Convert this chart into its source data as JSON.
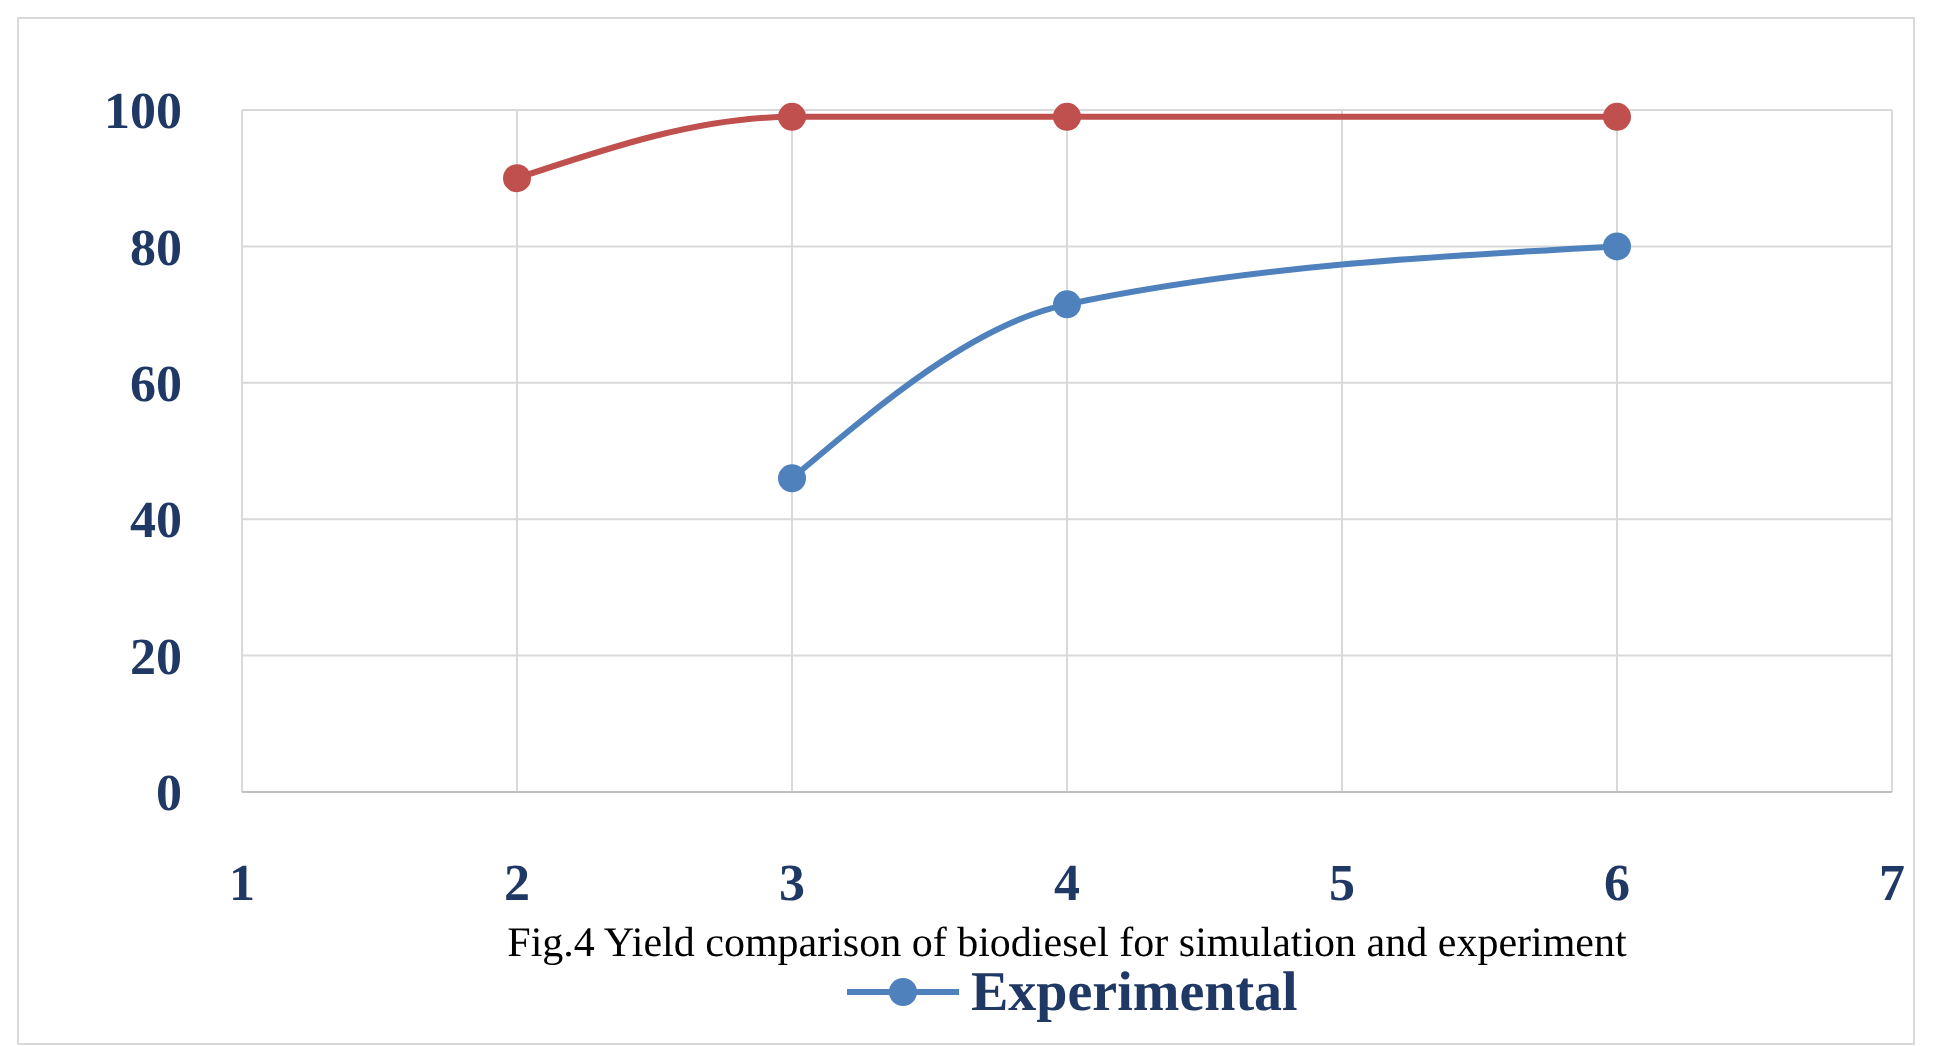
{
  "chart_data": {
    "type": "line",
    "xlim": [
      1,
      7
    ],
    "xticks": [
      1,
      2,
      3,
      4,
      5,
      6,
      7
    ],
    "ylim": [
      0,
      100
    ],
    "yticks": [
      0,
      20,
      40,
      60,
      80,
      100
    ],
    "grid": true,
    "legend": "bottom",
    "marker": "circle",
    "line_style": "solid",
    "annotations": [
      "Fig.4 Yield comparison of biodiesel for simulation and experiment"
    ],
    "series": [
      {
        "color": "#c0504d",
        "x": [
          2,
          3,
          4,
          6
        ],
        "values": [
          90,
          99,
          99,
          99
        ]
      },
      {
        "name": "Experimental",
        "color": "#4f81bd",
        "x": [
          3,
          4,
          6
        ],
        "values": [
          46,
          71.5,
          80
        ]
      }
    ]
  }
}
